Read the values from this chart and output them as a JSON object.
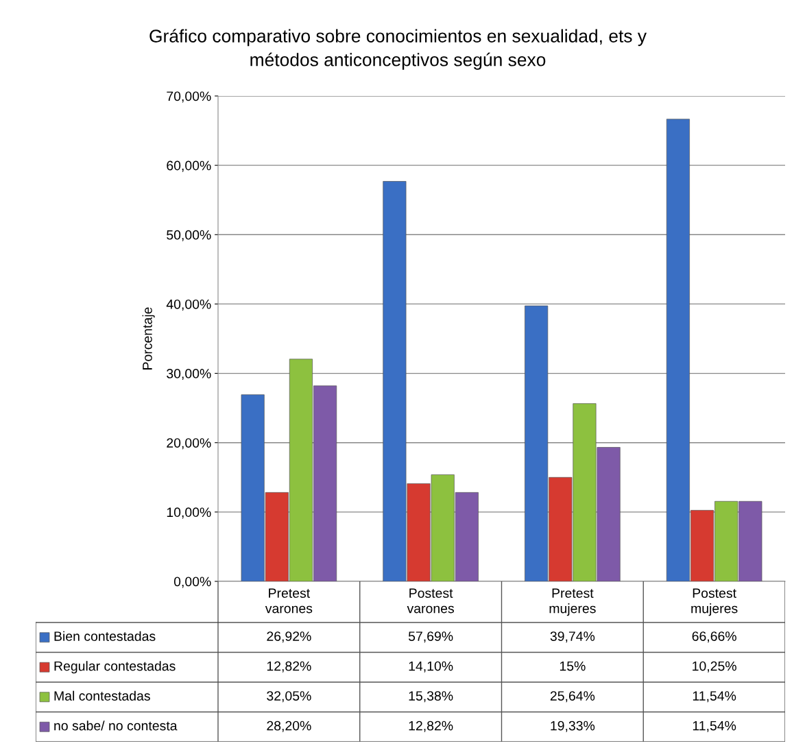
{
  "chart_data": {
    "type": "bar",
    "title": "Gráfico comparativo sobre conocimientos en sexualidad, ets y\nmétodos anticonceptivos según sexo",
    "ylabel": "Porcentaje",
    "categories": [
      "Pretest varones",
      "Postest varones",
      "Pretest mujeres",
      "Postest mujeres"
    ],
    "series": [
      {
        "name": "Bien contestadas",
        "color": "#3a6fc4",
        "values": [
          26.92,
          57.69,
          39.74,
          66.66
        ],
        "value_labels": [
          "26,92%",
          "57,69%",
          "39,74%",
          "66,66%"
        ]
      },
      {
        "name": "Regular contestadas",
        "color": "#d63a30",
        "values": [
          12.82,
          14.1,
          15,
          10.25
        ],
        "value_labels": [
          "12,82%",
          "14,10%",
          "15%",
          "10,25%"
        ]
      },
      {
        "name": "Mal contestadas",
        "color": "#8dc13f",
        "values": [
          32.05,
          15.38,
          25.64,
          11.54
        ],
        "value_labels": [
          "32,05%",
          "15,38%",
          "25,64%",
          "11,54%"
        ]
      },
      {
        "name": "no sabe/ no contesta",
        "color": "#7e5aa8",
        "values": [
          28.2,
          12.82,
          19.33,
          11.54
        ],
        "value_labels": [
          "28,20%",
          "12,82%",
          "19,33%",
          "11,54%"
        ]
      }
    ],
    "ylim": [
      0,
      70
    ],
    "yticks": [
      {
        "value": 0,
        "label": "0,00%"
      },
      {
        "value": 10,
        "label": "10,00%"
      },
      {
        "value": 20,
        "label": "20,00%"
      },
      {
        "value": 30,
        "label": "30,00%"
      },
      {
        "value": 40,
        "label": "40,00%"
      },
      {
        "value": 50,
        "label": "50,00%"
      },
      {
        "value": 60,
        "label": "60,00%"
      },
      {
        "value": 70,
        "label": "70,00%"
      }
    ],
    "grid": "y",
    "legend": "bottom"
  }
}
